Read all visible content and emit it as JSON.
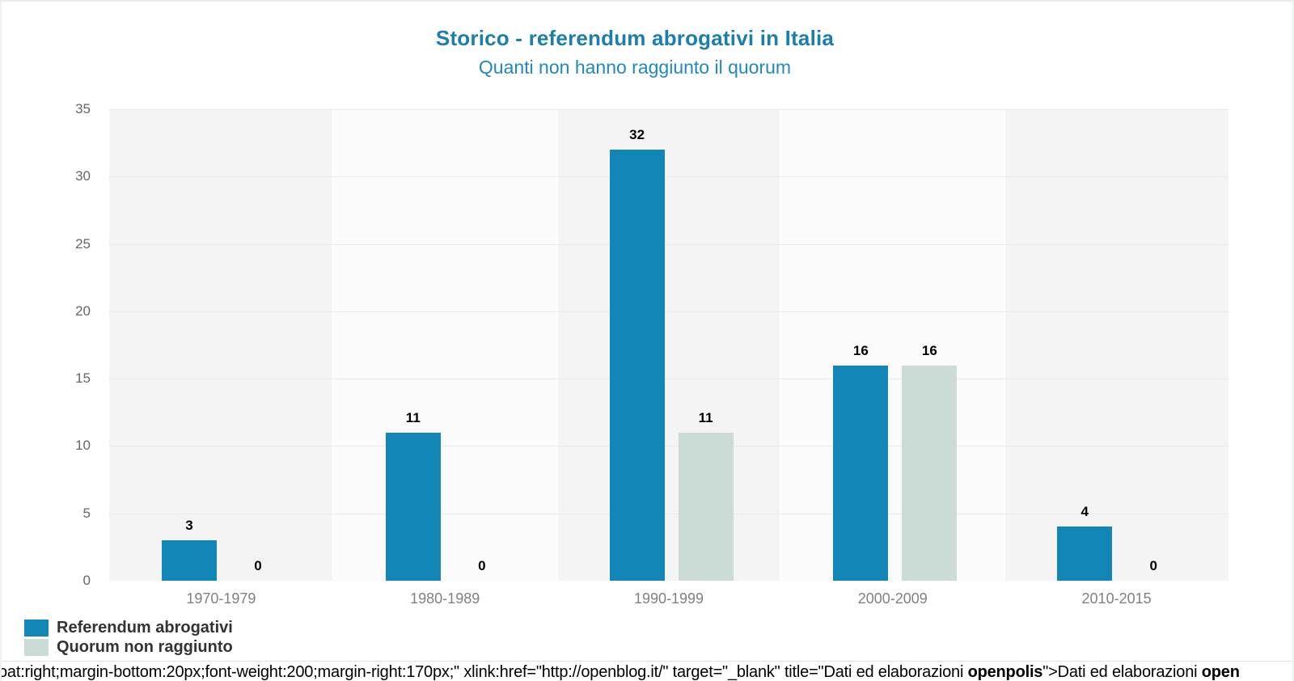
{
  "header": {
    "title": "Storico - referendum abrogativi in Italia",
    "subtitle": "Quanti non hanno raggiunto il quorum"
  },
  "chart_data": {
    "type": "bar",
    "title": "Storico - referendum abrogativi in Italia",
    "subtitle": "Quanti non hanno raggiunto il quorum",
    "categories": [
      "1970-1979",
      "1980-1989",
      "1990-1999",
      "2000-2009",
      "2010-2015"
    ],
    "series": [
      {
        "name": "Referendum abrogativi",
        "color": "#1286b6",
        "values": [
          3,
          11,
          32,
          16,
          4
        ]
      },
      {
        "name": "Quorum non raggiunto",
        "color": "#cbdcd7",
        "values": [
          0,
          0,
          11,
          16,
          0
        ]
      }
    ],
    "ylim": [
      0,
      35
    ],
    "yticks": [
      0,
      5,
      10,
      15,
      20,
      25,
      30,
      35
    ],
    "grid": true,
    "data_labels": true,
    "legend_position": "bottom-left",
    "plot_band_colors": [
      "#f4f4f4",
      "#fbfbfb"
    ]
  },
  "legend": {
    "items": [
      {
        "label": "Referendum abrogativi",
        "color": "#1286b6"
      },
      {
        "label": "Quorum non raggiunto",
        "color": "#cbdcd7"
      }
    ]
  },
  "footer": {
    "seg1": "oat:right;margin-bottom:20px;font-weight:200;margin-right:170px;\" xlink:href=\"http://openblog.it/\" target=\"_blank\" title=\"Dati ed elaborazioni ",
    "seg2": "openpolis",
    "seg3": "\">Dati ed elaborazioni ",
    "seg4": "open"
  },
  "colors": {
    "title": "#1b7eae",
    "subtitle": "#1f89ba",
    "series1": "#1286b6",
    "series2": "#cbdcd7",
    "band_dark": "#f4f4f4",
    "band_light": "#fbfbfb",
    "gridline": "#e9e9e9",
    "axis_labels": "#666666"
  }
}
